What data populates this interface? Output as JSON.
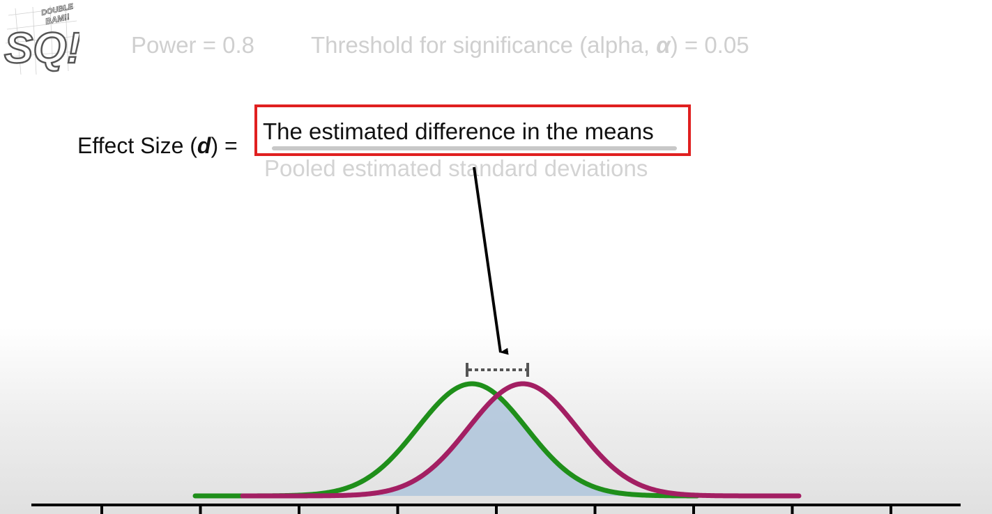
{
  "logo": {
    "text_top": "DOUBLE BAM!!",
    "text_main": "SQ!"
  },
  "header": {
    "power_text": "Power = 0.8",
    "alpha_prefix": "Threshold for significance (alpha, ",
    "alpha_symbol": "α",
    "alpha_suffix": ") = 0.05"
  },
  "formula": {
    "lhs_prefix": "Effect Size (",
    "lhs_symbol": "d",
    "lhs_suffix": ") =",
    "numerator": "The estimated difference in the means",
    "denominator": "Pooled estimated standard deviations"
  },
  "colors": {
    "green_curve": "#1f8f1a",
    "magenta_curve": "#a31f63",
    "overlap_fill": "#b4c8dc",
    "highlight_box": "#e02020",
    "arrow": "#000000",
    "difference_marker": "#555555"
  }
}
